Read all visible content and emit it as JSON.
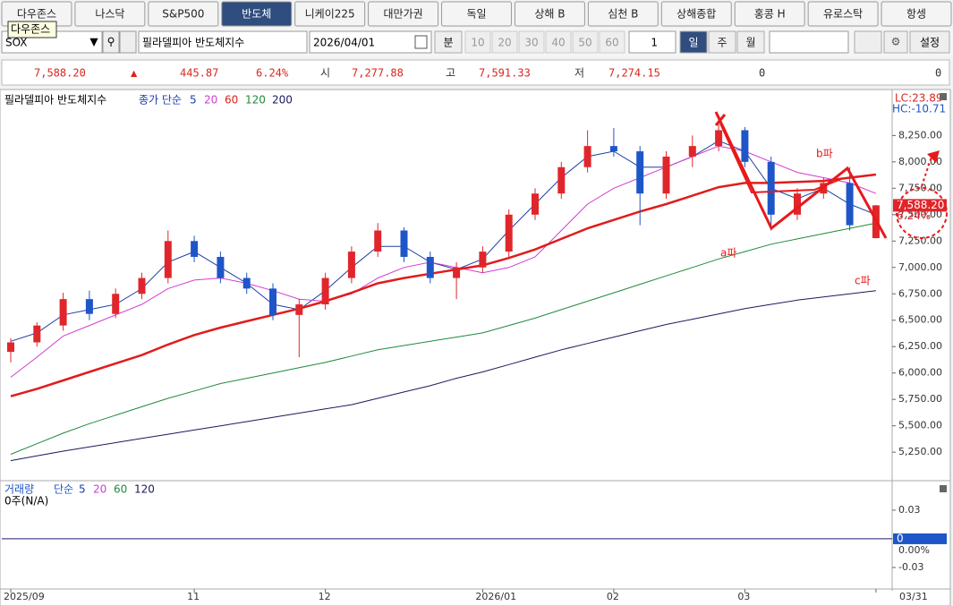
{
  "tabs": [
    "다우존스",
    "나스닥",
    "S&P500",
    "반도체",
    "니케이225",
    "대만가권",
    "독일",
    "상해 B",
    "심천 B",
    "상해종합",
    "홍콩 H",
    "유로스탁",
    "항셍"
  ],
  "selected_tab": 3,
  "tooltip": "다우존스",
  "toolbar": {
    "code": "SOX",
    "name": "필라델피아 반도체지수",
    "date": "2026/04/01",
    "minute": "분",
    "intervals": [
      "10",
      "20",
      "30",
      "40",
      "50",
      "60"
    ],
    "count": "1",
    "periods": [
      "일",
      "주",
      "월"
    ],
    "selected_period": 0,
    "settings": "설정"
  },
  "quote": {
    "price": "7,588.20",
    "arrow": "▲",
    "change": "445.87",
    "rate": "6.24%",
    "open_label": "시",
    "open": "7,277.88",
    "high_label": "고",
    "high": "7,591.33",
    "low_label": "저",
    "low": "7,274.15",
    "volume": "0",
    "amount": "0"
  },
  "chart_data": {
    "type": "candlestick",
    "title": "필라델피아 반도체지수",
    "ma_label": "종가 단순",
    "up_color": "#e0262b",
    "down_color": "#1e56c8",
    "categories": [
      "2025/09",
      null,
      null,
      null,
      null,
      null,
      null,
      "11",
      null,
      null,
      null,
      null,
      "12",
      null,
      null,
      null,
      null,
      null,
      "2026/01",
      null,
      null,
      null,
      null,
      "02",
      null,
      null,
      null,
      null,
      "03",
      null,
      null,
      null,
      null,
      "03/31"
    ],
    "open": [
      6200,
      6290,
      6450,
      6700,
      6560,
      6750,
      6900,
      7250,
      7100,
      6900,
      6800,
      6550,
      6650,
      6900,
      7150,
      7350,
      7100,
      6900,
      7000,
      7150,
      7500,
      7700,
      7950,
      8150,
      8100,
      7700,
      8050,
      8150,
      8300,
      8000,
      7500,
      7700,
      7800,
      7277.88
    ],
    "high": [
      6330,
      6480,
      6760,
      6780,
      6800,
      6950,
      7350,
      7300,
      7150,
      6950,
      6850,
      6700,
      6950,
      7200,
      7420,
      7380,
      7150,
      7050,
      7200,
      7550,
      7750,
      8000,
      8300,
      8320,
      8150,
      8100,
      8250,
      8400,
      8330,
      8050,
      7750,
      7850,
      7950,
      7591.33
    ],
    "low": [
      6100,
      6250,
      6400,
      6500,
      6520,
      6700,
      6850,
      7050,
      6850,
      6750,
      6500,
      6150,
      6600,
      6850,
      7100,
      7050,
      6850,
      6700,
      6950,
      7100,
      7450,
      7650,
      7900,
      8050,
      7400,
      7650,
      7950,
      8100,
      7950,
      7350,
      7450,
      7650,
      7350,
      7274.15
    ],
    "close": [
      6290,
      6450,
      6700,
      6560,
      6750,
      6900,
      7250,
      7100,
      6900,
      6800,
      6550,
      6650,
      6900,
      7150,
      7350,
      7100,
      6900,
      7000,
      7150,
      7500,
      7700,
      7950,
      8150,
      8100,
      7700,
      8050,
      8150,
      8300,
      8000,
      7500,
      7700,
      7800,
      7400,
      7588.2
    ],
    "series": [
      {
        "name": "5",
        "color": "#1e3fa8",
        "width": 1,
        "values": [
          6300,
          6380,
          6550,
          6600,
          6650,
          6800,
          7050,
          7150,
          7000,
          6850,
          6650,
          6600,
          6780,
          7000,
          7200,
          7200,
          7050,
          6980,
          7080,
          7350,
          7600,
          7850,
          8050,
          8100,
          7950,
          7950,
          8050,
          8200,
          8100,
          7750,
          7650,
          7750,
          7600,
          7500
        ]
      },
      {
        "name": "20",
        "color": "#d23cd2",
        "width": 1,
        "values": [
          5960,
          6150,
          6350,
          6450,
          6550,
          6650,
          6800,
          6880,
          6900,
          6850,
          6780,
          6700,
          6680,
          6750,
          6900,
          7000,
          7050,
          7000,
          6950,
          7000,
          7100,
          7350,
          7600,
          7750,
          7850,
          7950,
          8050,
          8150,
          8100,
          8000,
          7900,
          7850,
          7800,
          7700
        ]
      },
      {
        "name": "60",
        "color": "#e01c1c",
        "width": 2.5,
        "values": [
          5780,
          5850,
          5930,
          6010,
          6090,
          6170,
          6270,
          6360,
          6430,
          6490,
          6550,
          6610,
          6680,
          6760,
          6850,
          6900,
          6940,
          6980,
          7020,
          7090,
          7170,
          7270,
          7370,
          7450,
          7530,
          7600,
          7680,
          7760,
          7800,
          7800,
          7810,
          7820,
          7850,
          7880
        ]
      },
      {
        "name": "120",
        "color": "#1f8a3a",
        "width": 1,
        "values": [
          5230,
          5330,
          5430,
          5520,
          5600,
          5680,
          5760,
          5830,
          5900,
          5950,
          6000,
          6050,
          6100,
          6160,
          6220,
          6260,
          6300,
          6340,
          6380,
          6450,
          6520,
          6600,
          6680,
          6760,
          6840,
          6920,
          7000,
          7080,
          7150,
          7220,
          7270,
          7320,
          7370,
          7420
        ]
      },
      {
        "name": "200",
        "color": "#1a1a5e",
        "width": 1,
        "values": [
          5170,
          5215,
          5260,
          5300,
          5340,
          5380,
          5420,
          5460,
          5500,
          5540,
          5580,
          5620,
          5660,
          5700,
          5760,
          5820,
          5880,
          5950,
          6010,
          6080,
          6150,
          6220,
          6280,
          6340,
          6400,
          6460,
          6510,
          6560,
          6610,
          6650,
          6690,
          6720,
          6750,
          6780
        ]
      }
    ],
    "ylim": [
      4980,
      8660
    ],
    "yticks": [
      {
        "value": 8250,
        "label": "8,250.00"
      },
      {
        "value": 8000,
        "label": "8,000.00"
      },
      {
        "value": 7750,
        "label": "7,750.00"
      },
      {
        "value": 7500,
        "label": "7,500.00"
      },
      {
        "value": 7250,
        "label": "7,250.00"
      },
      {
        "value": 7000,
        "label": "7,000.00"
      },
      {
        "value": 6750,
        "label": "6,750.00"
      },
      {
        "value": 6500,
        "label": "6,500.00"
      },
      {
        "value": 6250,
        "label": "6,250.00"
      },
      {
        "value": 6000,
        "label": "6,000.00"
      },
      {
        "value": 5750,
        "label": "5,750.00"
      },
      {
        "value": 5500,
        "label": "5,500.00"
      },
      {
        "value": 5250,
        "label": "5,250.00"
      }
    ],
    "lc": "LC:23.89",
    "hc": "HC:-10.71",
    "last": {
      "value": 7588.2,
      "label": "7,588.20"
    },
    "last_rate": "6.24%",
    "annotations": [
      "a파",
      "b파",
      "c파"
    ],
    "volume": {
      "title": "거래량",
      "ma_label": "단순",
      "ma": [
        {
          "name": "5",
          "color": "#1e3fa8"
        },
        {
          "name": "20",
          "color": "#d23cd2"
        },
        {
          "name": "60",
          "color": "#1f8a3a"
        },
        {
          "name": "120",
          "color": "#1a1a5e"
        }
      ],
      "info": "0주(N/A)",
      "value": 0,
      "value_label": "0",
      "rate": "0.00%",
      "ylim": [
        -0.0525,
        0.058
      ],
      "yticks": [
        0.03,
        -0.03
      ]
    }
  }
}
